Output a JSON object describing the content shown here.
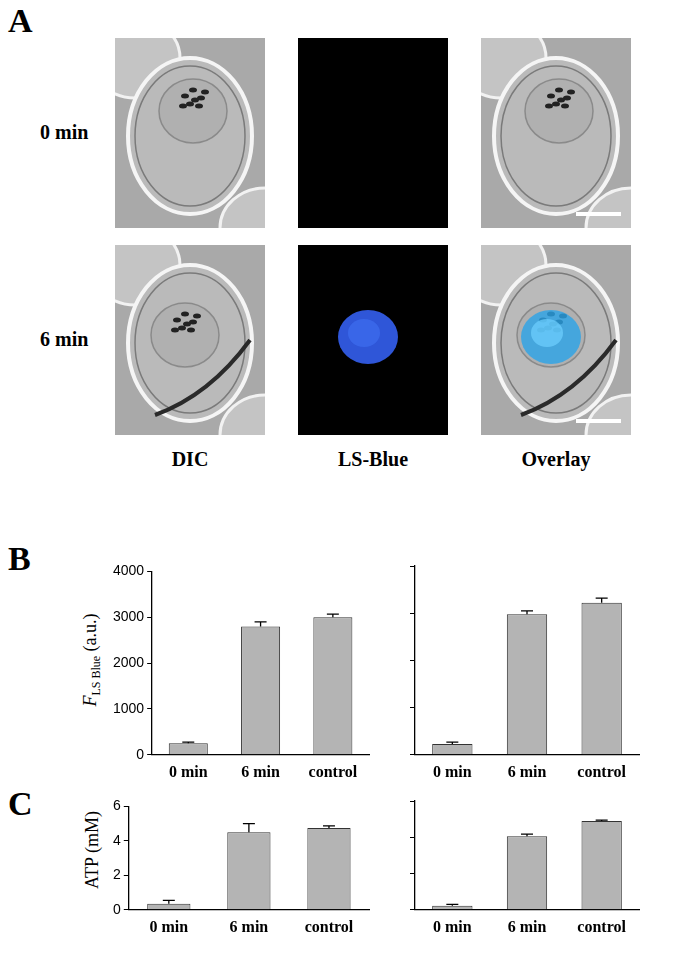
{
  "figure": {
    "panel_labels": [
      "A",
      "B",
      "C"
    ],
    "panel_A": {
      "row_labels": [
        "0 min",
        "6 min"
      ],
      "column_labels": [
        "DIC",
        "LS-Blue",
        "Overlay"
      ]
    }
  },
  "chart_data": [
    {
      "type": "bar",
      "y_label": {
        "symbol": "F",
        "subscript": "LS Blue",
        "unit": "(a.u.)"
      },
      "categories": [
        "0 min",
        "6 min",
        "control"
      ],
      "values": [
        250,
        2800,
        3000
      ],
      "errors": [
        25,
        100,
        70
      ],
      "color": "#b4b4b4",
      "ylim": [
        0,
        4000
      ],
      "yticks": [
        0,
        1000,
        2000,
        3000,
        4000
      ],
      "grid": false,
      "tick_labels": true
    },
    {
      "type": "bar",
      "categories": [
        "0 min",
        "6 min",
        "control"
      ],
      "values": [
        230,
        2980,
        3220
      ],
      "errors": [
        40,
        70,
        100
      ],
      "color": "#b4b4b4",
      "ylim": [
        0,
        4000
      ],
      "yticks": [
        0,
        1000,
        2000,
        3000,
        4000
      ],
      "grid": false,
      "tick_labels": "x"
    },
    {
      "type": "bar",
      "y_label": "ATP (mM)",
      "categories": [
        "0 min",
        "6 min",
        "control"
      ],
      "values": [
        0.35,
        4.5,
        4.75
      ],
      "errors": [
        0.2,
        0.5,
        0.12
      ],
      "color": "#b4b4b4",
      "ylim": [
        0,
        6
      ],
      "yticks": [
        0,
        2,
        4,
        6
      ],
      "grid": false,
      "tick_labels": true
    },
    {
      "type": "bar",
      "categories": [
        "0 min",
        "6 min",
        "control"
      ],
      "values": [
        0.22,
        4.05,
        4.9
      ],
      "errors": [
        0.08,
        0.12,
        0.05
      ],
      "color": "#b4b4b4",
      "ylim": [
        0,
        6
      ],
      "yticks": [
        0,
        2,
        4,
        6
      ],
      "grid": false,
      "tick_labels": "x"
    }
  ]
}
